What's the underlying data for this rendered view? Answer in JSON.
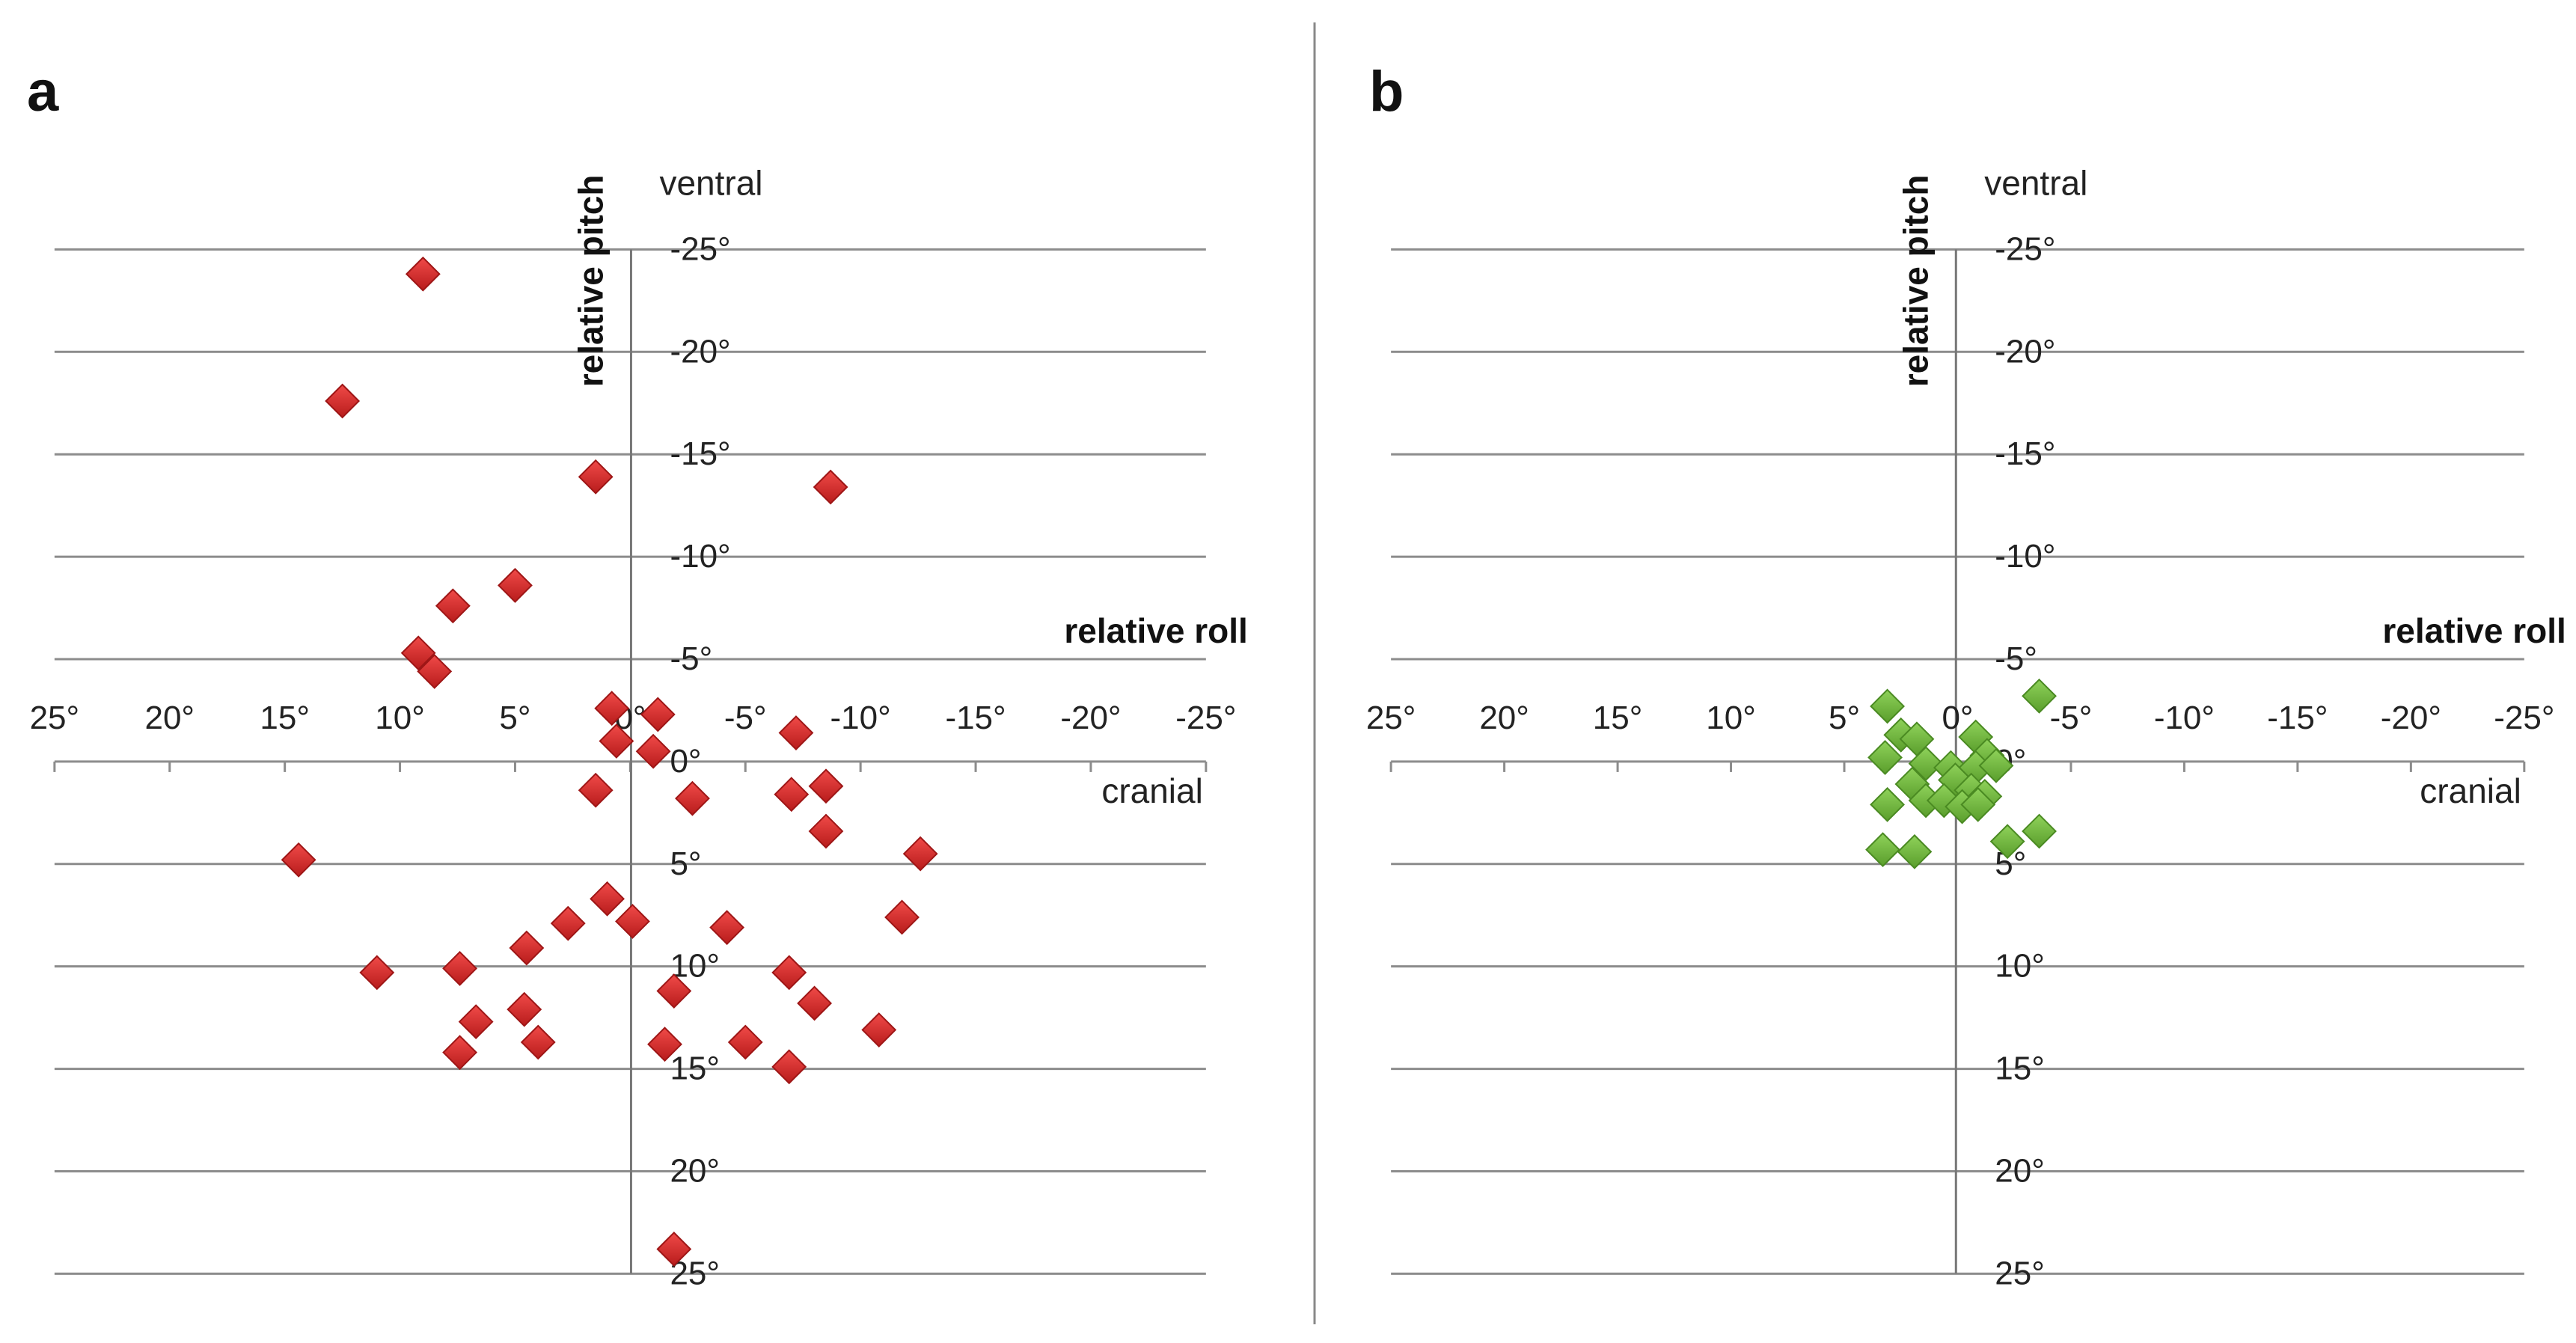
{
  "chart_data": [
    {
      "type": "scatter",
      "panel_label": "a",
      "x_title": "relative roll",
      "y_title": "relative pitch",
      "top_label": "ventral",
      "side_label": "cranial",
      "xlim": [
        25,
        -25
      ],
      "ylim": [
        -25,
        25
      ],
      "x_ticks": [
        25,
        20,
        15,
        10,
        5,
        0,
        -5,
        -10,
        -15,
        -20,
        -25
      ],
      "y_ticks": [
        -25,
        -20,
        -15,
        -10,
        -5,
        0,
        5,
        10,
        15,
        20,
        25
      ],
      "x_tick_labels": [
        "25°",
        "20°",
        "15°",
        "10°",
        "5°",
        "0°",
        "-5°",
        "-10°",
        "-15°",
        "-20°",
        "-25°"
      ],
      "y_tick_labels": [
        "-25°",
        "-20°",
        "-15°",
        "-10°",
        "-5°",
        "0°",
        "5°",
        "10°",
        "15°",
        "20°",
        "25°"
      ],
      "grid": true,
      "marker": "diamond",
      "color": "#d42a2a",
      "series": [
        {
          "name": "a",
          "points": [
            [
              9,
              -23.8
            ],
            [
              12.5,
              -17.6
            ],
            [
              1.5,
              -13.9
            ],
            [
              -8.7,
              -13.4
            ],
            [
              5,
              -8.6
            ],
            [
              7.7,
              -7.6
            ],
            [
              9.2,
              -5.3
            ],
            [
              8.5,
              -4.4
            ],
            [
              0.8,
              -2.6
            ],
            [
              -1.2,
              -2.3
            ],
            [
              -7.2,
              -1.4
            ],
            [
              0.6,
              -1
            ],
            [
              -1,
              -0.5
            ],
            [
              -8.5,
              1.2
            ],
            [
              1.5,
              1.4
            ],
            [
              -2.7,
              1.8
            ],
            [
              -7,
              1.6
            ],
            [
              -8.5,
              3.4
            ],
            [
              14.4,
              4.8
            ],
            [
              -12.6,
              4.5
            ],
            [
              1,
              6.7
            ],
            [
              -0.1,
              7.8
            ],
            [
              2.7,
              7.9
            ],
            [
              -4.2,
              8.1
            ],
            [
              -11.8,
              7.6
            ],
            [
              4.5,
              9.1
            ],
            [
              11,
              10.3
            ],
            [
              7.4,
              10.1
            ],
            [
              -6.9,
              10.3
            ],
            [
              -1.9,
              11.2
            ],
            [
              4.6,
              12.1
            ],
            [
              -8,
              11.8
            ],
            [
              6.7,
              12.7
            ],
            [
              4,
              13.7
            ],
            [
              -10.8,
              13.1
            ],
            [
              -1.5,
              13.8
            ],
            [
              -5,
              13.7
            ],
            [
              7.4,
              14.2
            ],
            [
              -6.9,
              14.9
            ],
            [
              -1.9,
              23.8
            ]
          ]
        }
      ]
    },
    {
      "type": "scatter",
      "panel_label": "b",
      "x_title": "relative roll",
      "y_title": "relative pitch",
      "top_label": "ventral",
      "side_label": "cranial",
      "xlim": [
        25,
        -25
      ],
      "ylim": [
        -25,
        25
      ],
      "x_ticks": [
        25,
        20,
        15,
        10,
        5,
        0,
        -5,
        -10,
        -15,
        -20,
        -25
      ],
      "y_ticks": [
        -25,
        -20,
        -15,
        -10,
        -5,
        0,
        5,
        10,
        15,
        20,
        25
      ],
      "x_tick_labels": [
        "25°",
        "20°",
        "15°",
        "10°",
        "5°",
        "0°",
        "-5°",
        "-10°",
        "-15°",
        "-20°",
        "-25°"
      ],
      "y_tick_labels": [
        "-25°",
        "-20°",
        "-15°",
        "-10°",
        "-5°",
        "0°",
        "5°",
        "10°",
        "15°",
        "20°",
        "25°"
      ],
      "grid": true,
      "marker": "diamond",
      "color": "#6fb83a",
      "series": [
        {
          "name": "b",
          "points": [
            [
              3.1,
              -2.7
            ],
            [
              -3.6,
              -3.2
            ],
            [
              2.5,
              -1.3
            ],
            [
              1.8,
              -1.1
            ],
            [
              -0.8,
              -1.2
            ],
            [
              -1.3,
              -0.3
            ],
            [
              3.2,
              -0.2
            ],
            [
              1.4,
              0.1
            ],
            [
              0.3,
              0.3
            ],
            [
              -0.8,
              0.3
            ],
            [
              -1.7,
              0.2
            ],
            [
              0.1,
              0.9
            ],
            [
              2,
              1.1
            ],
            [
              -0.6,
              1.4
            ],
            [
              -1.2,
              1.7
            ],
            [
              1.4,
              1.9
            ],
            [
              0.6,
              1.9
            ],
            [
              3.1,
              2.1
            ],
            [
              -0.2,
              2.2
            ],
            [
              -0.9,
              2.1
            ],
            [
              -3.6,
              3.4
            ],
            [
              -2.2,
              3.9
            ],
            [
              3.3,
              4.3
            ],
            [
              1.9,
              4.4
            ]
          ]
        }
      ]
    }
  ]
}
